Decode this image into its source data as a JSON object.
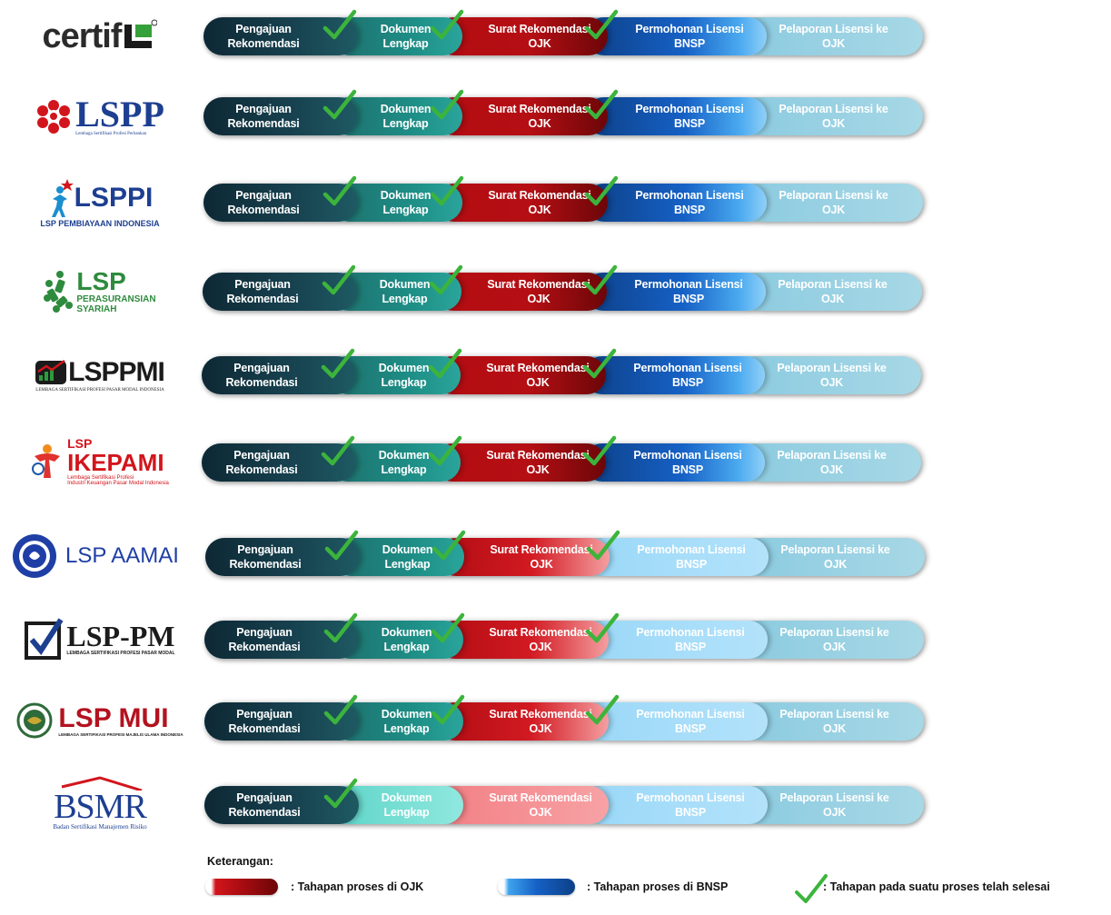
{
  "stage_labels": {
    "s1": "Pengajuan\nRekomendasi",
    "s2": "Dokumen\nLengkap",
    "s3": "Surat Rekomendasi\nOJK",
    "s4": "Permohonan Lisensi\nBNSP",
    "s5": "Pelaporan Lisensi ke\nOJK"
  },
  "logos": {
    "certif": "certif",
    "lspp": "LSPP",
    "lspp_sub": "Lembaga Sertifikasi Profesi Perbankan",
    "lsppi": "LSPPI",
    "lsppi_sub": "LSP PEMBIAYAAN INDONESIA",
    "lsp_asuransi": "LSP",
    "lsp_asuransi_sub1": "PERASURANSIAN",
    "lsp_asuransi_sub2": "SYARIAH",
    "lsppmi": "LSPPMI",
    "lsppmi_sub": "LEMBAGA SERTIFIKASI PROFESI PASAR MODAL INDONESIA",
    "ikepami_top": "LSP",
    "ikepami": "IKEPAMI",
    "ikepami_sub1": "Lembaga Sertifikasi Profesi",
    "ikepami_sub2": "Industri Keuangan Pasar Modal Indonesia",
    "aamai": "LSP AAMAI",
    "lsppm": "LSP-PM",
    "lsppm_sub": "LEMBAGA SERTIFIKASI PROFESI PASAR MODAL",
    "lspmui": "LSP MUI",
    "lspmui_sub": "LEMBAGA SERTIFIKASI PROFESI MAJELIS ULAMA INDONESIA",
    "bsmr": "BSMR",
    "bsmr_sub": "Badan Sertifikasi Manajemen Risiko"
  },
  "progress": [
    {
      "org": "certif",
      "stages_completed": 4
    },
    {
      "org": "LSPP",
      "stages_completed": 4
    },
    {
      "org": "LSPPI",
      "stages_completed": 4
    },
    {
      "org": "LSP Perasuransian Syariah",
      "stages_completed": 4
    },
    {
      "org": "LSPPMI",
      "stages_completed": 4
    },
    {
      "org": "LSP IKEPAMI",
      "stages_completed": 4
    },
    {
      "org": "LSP AAMAI",
      "stages_completed": 3
    },
    {
      "org": "LSP-PM",
      "stages_completed": 3
    },
    {
      "org": "LSP MUI",
      "stages_completed": 3
    },
    {
      "org": "BSMR",
      "stages_completed": 1
    }
  ],
  "legend": {
    "title": "Keterangan:",
    "ojk": ": Tahapan proses di OJK",
    "bnsp": ": Tahapan proses di BNSP",
    "done": ": Tahapan pada suatu proses telah selesai"
  },
  "colors": {
    "ojk_red": "#b50f14",
    "bnsp_blue": "#1661c6",
    "check_green": "#3cb43c",
    "dark_teal": "#0d2834"
  }
}
